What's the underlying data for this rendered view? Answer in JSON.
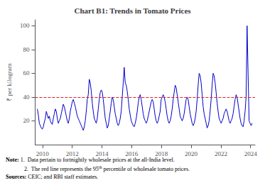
{
  "chart_data": {
    "type": "line",
    "title": "Chart B1: Trends in Tomato Prices",
    "ylabel": "₹ per kilogram",
    "color": "#0000cc",
    "x": [
      2009.65,
      2009.7172,
      2009.7844,
      2009.8516,
      2009.9188,
      2009.986,
      2010.0533,
      2010.1205,
      2010.1877,
      2010.2549,
      2010.3221,
      2010.3893,
      2010.4565,
      2010.5237,
      2010.5909,
      2010.6581,
      2010.7253,
      2010.7926,
      2010.8598,
      2010.927,
      2010.9942,
      2011.0614,
      2011.1286,
      2011.1958,
      2011.263,
      2011.3302,
      2011.3974,
      2011.4647,
      2011.5319,
      2011.5991,
      2011.6663,
      2011.7335,
      2011.8007,
      2011.8679,
      2011.9351,
      2012.0023,
      2012.0695,
      2012.1367,
      2012.204,
      2012.2712,
      2012.3384,
      2012.4056,
      2012.4728,
      2012.54,
      2012.6072,
      2012.6744,
      2012.7416,
      2012.8088,
      2012.876,
      2012.9433,
      2013.0105,
      2013.0777,
      2013.1449,
      2013.2121,
      2013.2793,
      2013.3465,
      2013.4137,
      2013.4809,
      2013.5481,
      2013.6153,
      2013.6826,
      2013.7498,
      2013.817,
      2013.8842,
      2013.9514,
      2014.0186,
      2014.0858,
      2014.153,
      2014.2202,
      2014.2874,
      2014.3547,
      2014.4219,
      2014.4891,
      2014.5563,
      2014.6235,
      2014.6907,
      2014.7579,
      2014.8251,
      2014.8923,
      2014.9595,
      2015.0267,
      2015.094,
      2015.1612,
      2015.2284,
      2015.2956,
      2015.3628,
      2015.43,
      2015.4972,
      2015.5644,
      2015.6316,
      2015.6988,
      2015.766,
      2015.8333,
      2015.9005,
      2015.9677,
      2016.0349,
      2016.1021,
      2016.1693,
      2016.2365,
      2016.3037,
      2016.3709,
      2016.4381,
      2016.5053,
      2016.5726,
      2016.6398,
      2016.707,
      2016.7742,
      2016.8414,
      2016.9086,
      2016.9758,
      2017.043,
      2017.1102,
      2017.1774,
      2017.2447,
      2017.3119,
      2017.3791,
      2017.4463,
      2017.5135,
      2017.5807,
      2017.6479,
      2017.7151,
      2017.7823,
      2017.8495,
      2017.9167,
      2017.984,
      2018.0512,
      2018.1184,
      2018.1856,
      2018.2528,
      2018.32,
      2018.3872,
      2018.4544,
      2018.5216,
      2018.5888,
      2018.656,
      2018.7233,
      2018.7905,
      2018.8577,
      2018.9249,
      2018.9921,
      2019.0593,
      2019.1265,
      2019.1937,
      2019.2609,
      2019.3281,
      2019.3953,
      2019.4626,
      2019.5298,
      2019.597,
      2019.6642,
      2019.7314,
      2019.7986,
      2019.8658,
      2019.933,
      2020.0002,
      2020.0674,
      2020.1347,
      2020.2019,
      2020.2691,
      2020.3363,
      2020.4035,
      2020.4707,
      2020.5379,
      2020.6051,
      2020.6723,
      2020.7395,
      2020.8067,
      2020.874,
      2020.9412,
      2021.0084,
      2021.0756,
      2021.1428,
      2021.21,
      2021.2772,
      2021.3444,
      2021.4116,
      2021.4788,
      2021.546,
      2021.6133,
      2021.6805,
      2021.7477,
      2021.8149,
      2021.8821,
      2021.9493,
      2022.0165,
      2022.0837,
      2022.1509,
      2022.2181,
      2022.2853,
      2022.3526,
      2022.4198,
      2022.487,
      2022.5542,
      2022.6214,
      2022.6886,
      2022.7558,
      2022.823,
      2022.8902,
      2022.9574,
      2023.0247,
      2023.0919,
      2023.1591,
      2023.2263,
      2023.2935,
      2023.3607,
      2023.4279,
      2023.4951,
      2023.5623,
      2023.6295,
      2023.6967,
      2023.764,
      2023.8312,
      2023.8984,
      2023.9656,
      2024.0328,
      2024.1
    ],
    "values": [
      30,
      25,
      18,
      16,
      14,
      13,
      15,
      19,
      22,
      28,
      25,
      22,
      24,
      20,
      18,
      17,
      22,
      26,
      30,
      28,
      22,
      18,
      20,
      22,
      26,
      30,
      34,
      32,
      28,
      24,
      20,
      18,
      22,
      28,
      32,
      36,
      38,
      35,
      32,
      28,
      24,
      22,
      20,
      18,
      16,
      14,
      12,
      15,
      20,
      28,
      38,
      42,
      55,
      52,
      45,
      35,
      28,
      22,
      20,
      18,
      22,
      30,
      38,
      44,
      46,
      44,
      38,
      30,
      22,
      18,
      14,
      16,
      22,
      28,
      35,
      40,
      38,
      32,
      26,
      22,
      18,
      16,
      18,
      22,
      28,
      40,
      52,
      65,
      52,
      50,
      45,
      38,
      30,
      25,
      20,
      18,
      16,
      15,
      18,
      22,
      28,
      35,
      40,
      42,
      38,
      32,
      26,
      22,
      20,
      18,
      20,
      24,
      28,
      32,
      36,
      38,
      36,
      30,
      24,
      20,
      18,
      20,
      24,
      28,
      38,
      40,
      42,
      40,
      36,
      30,
      24,
      20,
      18,
      20,
      24,
      30,
      38,
      44,
      50,
      48,
      42,
      36,
      30,
      24,
      22,
      20,
      22,
      26,
      32,
      38,
      40,
      38,
      32,
      26,
      22,
      18,
      16,
      18,
      22,
      28,
      38,
      50,
      60,
      58,
      52,
      42,
      32,
      26,
      22,
      18,
      14,
      16,
      20,
      28,
      38,
      50,
      60,
      58,
      52,
      44,
      35,
      28,
      22,
      20,
      18,
      20,
      22,
      26,
      28,
      30,
      28,
      24,
      20,
      18,
      20,
      22,
      26,
      32,
      38,
      42,
      40,
      34,
      28,
      22,
      18,
      16,
      15,
      20,
      28,
      40,
      100,
      60,
      20,
      18,
      16,
      18
    ],
    "reference_line": {
      "value": 40,
      "color": "#dd2222",
      "line_style": "dashed"
    },
    "xlim": [
      2009.5,
      2024.3
    ],
    "xticks": [
      2010,
      2012,
      2014,
      2016,
      2018,
      2020,
      2022,
      2024
    ],
    "ylim": [
      0,
      105
    ],
    "yticks": [
      20,
      40,
      60,
      80,
      100
    ],
    "grid": false,
    "notes": [
      {
        "label": "Note:",
        "text": "1.  Data pertain to fortnightly wholesale prices at the all-India level."
      },
      {
        "text": [
          "2.  The red line represents the 95",
          "th",
          " percentile of wholesale tomato prices."
        ]
      },
      {
        "label": "Sources:",
        "text": "CEIC; and RBI staff estimates."
      }
    ]
  }
}
